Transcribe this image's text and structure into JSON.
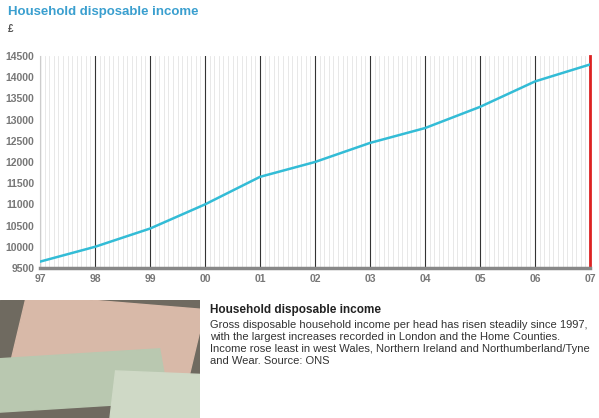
{
  "chart_data": {
    "type": "line",
    "title": "Household disposable income",
    "y_label": "£",
    "categories": [
      "97",
      "98",
      "99",
      "00",
      "01",
      "02",
      "03",
      "04",
      "05",
      "06",
      "07"
    ],
    "values": [
      9650,
      10000,
      10430,
      11000,
      11650,
      12000,
      12450,
      12800,
      13300,
      13900,
      14300
    ],
    "color": "#33bcd6",
    "ylim": [
      9500,
      14500
    ],
    "yticks": [
      9500,
      10000,
      10500,
      11000,
      11500,
      12000,
      12500,
      13000,
      13500,
      14000,
      14500
    ],
    "grid": true
  },
  "caption": {
    "heading": "Household disposable income",
    "text": "Gross disposable household income per head has risen steadily since 1997, with the largest increases recorded in London and the Home Counties. Income rose least in west Wales, Northern Ireland and Northumberland/Tyne and Wear. Source: ONS"
  }
}
